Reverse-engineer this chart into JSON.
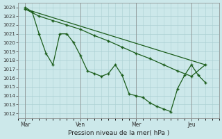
{
  "bg_color": "#cce8ea",
  "grid_color": "#aacfd2",
  "line_color": "#1a5c1a",
  "xlabel": "Pression niveau de la mer( hPa )",
  "ylim": [
    1011.5,
    1024.5
  ],
  "yticks": [
    1012,
    1013,
    1014,
    1015,
    1016,
    1017,
    1018,
    1019,
    1020,
    1021,
    1022,
    1023,
    1024
  ],
  "xtick_labels": [
    "Mar",
    "Ven",
    "Mer",
    "Jeu"
  ],
  "xtick_positions": [
    0,
    8,
    16,
    24
  ],
  "xlim": [
    -1,
    28
  ],
  "series1_x": [
    0,
    1,
    2,
    3,
    4,
    5,
    6,
    7,
    8,
    9,
    10,
    11,
    12,
    13,
    14,
    15,
    16,
    17,
    18,
    19,
    20,
    21,
    22,
    23,
    24,
    25,
    26
  ],
  "series1_y": [
    1024.0,
    1023.5,
    1021.0,
    1018.8,
    1017.5,
    1021.0,
    1021.0,
    1020.0,
    1018.5,
    1016.8,
    1016.5,
    1016.2,
    1016.5,
    1017.5,
    1016.3,
    1014.2,
    1014.0,
    1013.8,
    1013.2,
    1012.8,
    1012.5,
    1012.2,
    1014.8,
    1016.3,
    1017.5,
    1016.3,
    1015.5
  ],
  "series2_x": [
    0,
    2,
    4,
    6,
    8,
    10,
    12,
    14,
    16,
    18,
    20,
    22,
    24,
    26
  ],
  "series2_y": [
    1023.8,
    1023.0,
    1022.5,
    1022.0,
    1021.5,
    1020.8,
    1020.2,
    1019.5,
    1018.8,
    1018.2,
    1017.5,
    1016.8,
    1016.2,
    1017.5
  ],
  "series3_x": [
    0,
    26
  ],
  "series3_y": [
    1023.8,
    1017.5
  ]
}
